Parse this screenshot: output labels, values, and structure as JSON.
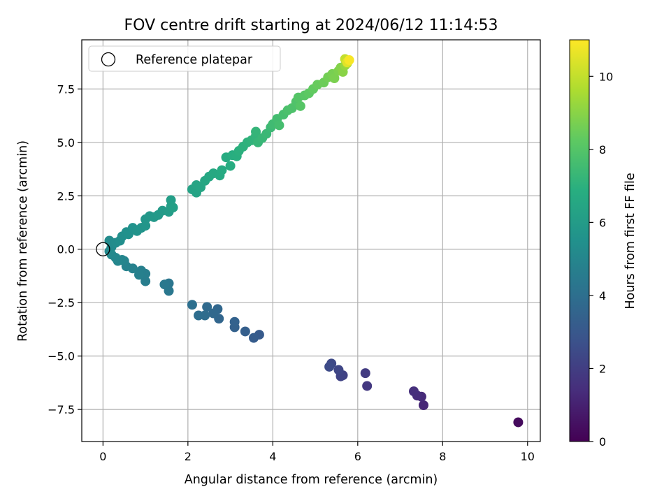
{
  "chart_data": {
    "type": "scatter",
    "title": "FOV centre drift starting at 2024/06/12 11:14:53",
    "xlabel": "Angular distance from reference (arcmin)",
    "ylabel": "Rotation from reference (arcmin)",
    "xlim": [
      -0.5,
      10.3
    ],
    "ylim": [
      -9.0,
      9.8
    ],
    "xticks": [
      "0",
      "2",
      "4",
      "6",
      "8",
      "10"
    ],
    "xtick_values": [
      0,
      2,
      4,
      6,
      8,
      10
    ],
    "yticks": [
      "−7.5",
      "−5.0",
      "−2.5",
      "0.0",
      "2.5",
      "5.0",
      "7.5"
    ],
    "ytick_values": [
      -7.5,
      -5.0,
      -2.5,
      0.0,
      2.5,
      5.0,
      7.5
    ],
    "grid": true,
    "legend": {
      "placement": "upper-left",
      "entries": [
        "Reference platepar"
      ]
    },
    "reference_point": {
      "x": 0,
      "y": 0
    },
    "colorbar": {
      "label": "Hours from first FF file",
      "min": 0,
      "max": 11,
      "ticks": [
        "0",
        "2",
        "4",
        "6",
        "8",
        "10"
      ],
      "tick_values": [
        0,
        2,
        4,
        6,
        8,
        10
      ],
      "colormap": "viridis"
    },
    "series": [
      {
        "points": [
          [
            9.78,
            -8.1,
            0.3
          ],
          [
            7.55,
            -7.3,
            1.2
          ],
          [
            7.5,
            -6.9,
            1.3
          ],
          [
            7.4,
            -6.85,
            1.4
          ],
          [
            7.32,
            -6.65,
            1.5
          ],
          [
            6.22,
            -6.4,
            1.8
          ],
          [
            6.18,
            -5.8,
            1.9
          ],
          [
            5.65,
            -5.9,
            2.1
          ],
          [
            5.6,
            -5.95,
            2.2
          ],
          [
            5.55,
            -5.65,
            2.3
          ],
          [
            5.38,
            -5.35,
            2.4
          ],
          [
            5.33,
            -5.5,
            2.5
          ],
          [
            3.68,
            -4.0,
            3.1
          ],
          [
            3.55,
            -4.15,
            3.2
          ],
          [
            3.35,
            -3.85,
            3.3
          ],
          [
            3.1,
            -3.65,
            3.4
          ],
          [
            3.1,
            -3.4,
            3.45
          ],
          [
            2.73,
            -3.25,
            3.6
          ],
          [
            2.7,
            -2.8,
            3.65
          ],
          [
            2.6,
            -3.0,
            3.7
          ],
          [
            2.45,
            -2.7,
            3.8
          ],
          [
            2.4,
            -3.1,
            3.85
          ],
          [
            2.25,
            -3.1,
            3.9
          ],
          [
            2.1,
            -2.6,
            4.0
          ],
          [
            1.55,
            -1.6,
            4.3
          ],
          [
            1.55,
            -1.95,
            4.35
          ],
          [
            1.45,
            -1.65,
            4.4
          ],
          [
            1.0,
            -1.5,
            4.6
          ],
          [
            1.0,
            -1.15,
            4.65
          ],
          [
            0.9,
            -1.0,
            4.7
          ],
          [
            0.85,
            -1.2,
            4.75
          ],
          [
            0.7,
            -0.9,
            4.8
          ],
          [
            0.55,
            -0.8,
            4.85
          ],
          [
            0.5,
            -0.55,
            4.9
          ],
          [
            0.45,
            -0.5,
            4.95
          ],
          [
            0.35,
            -0.55,
            5.0
          ],
          [
            0.3,
            -0.4,
            5.05
          ],
          [
            0.2,
            -0.25,
            5.1
          ],
          [
            0.15,
            -0.1,
            5.15
          ],
          [
            0.2,
            0.1,
            5.2
          ],
          [
            0.15,
            0.4,
            5.25
          ],
          [
            0.3,
            0.3,
            5.3
          ],
          [
            0.4,
            0.4,
            5.35
          ],
          [
            0.45,
            0.6,
            5.4
          ],
          [
            0.55,
            0.8,
            5.45
          ],
          [
            0.6,
            0.7,
            5.5
          ],
          [
            0.7,
            1.0,
            5.55
          ],
          [
            0.8,
            0.85,
            5.6
          ],
          [
            0.9,
            1.0,
            5.65
          ],
          [
            1.0,
            1.1,
            5.7
          ],
          [
            1.0,
            1.4,
            5.75
          ],
          [
            1.1,
            1.55,
            5.8
          ],
          [
            1.2,
            1.5,
            5.85
          ],
          [
            1.3,
            1.6,
            5.9
          ],
          [
            1.4,
            1.8,
            5.95
          ],
          [
            1.55,
            1.75,
            6.0
          ],
          [
            1.6,
            2.0,
            6.05
          ],
          [
            1.6,
            2.3,
            6.1
          ],
          [
            1.65,
            1.95,
            6.15
          ],
          [
            2.1,
            2.8,
            6.3
          ],
          [
            2.2,
            2.65,
            6.35
          ],
          [
            2.2,
            3.0,
            6.4
          ],
          [
            2.3,
            2.9,
            6.45
          ],
          [
            2.4,
            3.2,
            6.5
          ],
          [
            2.5,
            3.4,
            6.55
          ],
          [
            2.6,
            3.55,
            6.6
          ],
          [
            2.75,
            3.45,
            6.65
          ],
          [
            2.8,
            3.7,
            6.7
          ],
          [
            2.9,
            4.3,
            6.75
          ],
          [
            3.0,
            3.9,
            6.8
          ],
          [
            3.05,
            4.4,
            6.85
          ],
          [
            3.15,
            4.35,
            6.9
          ],
          [
            3.2,
            4.6,
            6.95
          ],
          [
            3.3,
            4.8,
            7.0
          ],
          [
            3.4,
            5.0,
            7.05
          ],
          [
            3.5,
            5.1,
            7.1
          ],
          [
            3.6,
            5.3,
            7.15
          ],
          [
            3.6,
            5.5,
            7.2
          ],
          [
            3.65,
            5.0,
            7.25
          ],
          [
            3.75,
            5.2,
            7.3
          ],
          [
            3.85,
            5.4,
            7.35
          ],
          [
            3.95,
            5.7,
            7.4
          ],
          [
            4.0,
            5.85,
            7.5
          ],
          [
            4.1,
            6.1,
            7.6
          ],
          [
            4.15,
            5.8,
            7.65
          ],
          [
            4.25,
            6.3,
            7.7
          ],
          [
            4.35,
            6.5,
            7.8
          ],
          [
            4.45,
            6.6,
            7.85
          ],
          [
            4.55,
            6.9,
            7.9
          ],
          [
            4.6,
            7.1,
            8.0
          ],
          [
            4.65,
            6.7,
            8.05
          ],
          [
            4.75,
            7.2,
            8.1
          ],
          [
            4.85,
            7.3,
            8.2
          ],
          [
            4.95,
            7.5,
            8.3
          ],
          [
            5.05,
            7.7,
            8.4
          ],
          [
            5.2,
            7.8,
            8.5
          ],
          [
            5.3,
            8.05,
            8.6
          ],
          [
            5.4,
            8.2,
            8.7
          ],
          [
            5.45,
            8.0,
            8.75
          ],
          [
            5.55,
            8.35,
            8.8
          ],
          [
            5.6,
            8.5,
            8.9
          ],
          [
            5.65,
            8.3,
            9.0
          ],
          [
            5.7,
            8.6,
            9.2
          ],
          [
            5.75,
            8.7,
            9.5
          ],
          [
            5.7,
            8.9,
            10.0
          ],
          [
            5.75,
            8.75,
            10.5
          ],
          [
            5.8,
            8.85,
            10.9
          ]
        ]
      }
    ]
  }
}
